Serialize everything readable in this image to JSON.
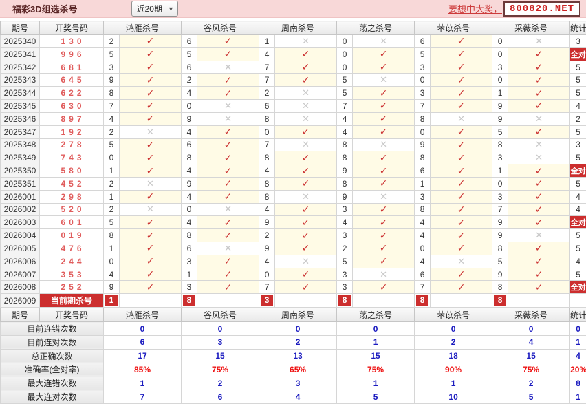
{
  "topbar": {
    "title": "福彩3D组选杀号",
    "range_value": "近20期",
    "promo_link": "要想中大奖，",
    "promo_site": "800820.NET"
  },
  "icons": {
    "check": "✓",
    "cross": "✕",
    "dropdown_arrow": "▼"
  },
  "colors": {
    "accent_red": "#cc2e2e",
    "value_blue": "#1a1abf",
    "percent_red": "#ee1111",
    "hit_bg": "#fffbe6"
  },
  "table": {
    "headers": {
      "period": "期号",
      "draw": "开奖号码",
      "experts": [
        "鸿雁杀号",
        "谷风杀号",
        "周南杀号",
        "荡之杀号",
        "芣苡杀号",
        "采薇杀号"
      ],
      "stat": "统计"
    },
    "all_correct_label": "全对",
    "rows": [
      {
        "period": "2025340",
        "draw": "130",
        "kills": [
          {
            "n": "2",
            "hit": true
          },
          {
            "n": "6",
            "hit": true
          },
          {
            "n": "1",
            "hit": false
          },
          {
            "n": "0",
            "hit": false
          },
          {
            "n": "6",
            "hit": true
          },
          {
            "n": "0",
            "hit": false
          }
        ],
        "stat": "3"
      },
      {
        "period": "2025341",
        "draw": "996",
        "kills": [
          {
            "n": "5",
            "hit": true
          },
          {
            "n": "5",
            "hit": true
          },
          {
            "n": "4",
            "hit": true
          },
          {
            "n": "0",
            "hit": true
          },
          {
            "n": "5",
            "hit": true
          },
          {
            "n": "0",
            "hit": true
          }
        ],
        "stat": "全对"
      },
      {
        "period": "2025342",
        "draw": "681",
        "kills": [
          {
            "n": "3",
            "hit": true
          },
          {
            "n": "6",
            "hit": false
          },
          {
            "n": "7",
            "hit": true
          },
          {
            "n": "0",
            "hit": true
          },
          {
            "n": "3",
            "hit": true
          },
          {
            "n": "3",
            "hit": true
          }
        ],
        "stat": "5"
      },
      {
        "period": "2025343",
        "draw": "645",
        "kills": [
          {
            "n": "9",
            "hit": true
          },
          {
            "n": "2",
            "hit": true
          },
          {
            "n": "7",
            "hit": true
          },
          {
            "n": "5",
            "hit": false
          },
          {
            "n": "0",
            "hit": true
          },
          {
            "n": "0",
            "hit": true
          }
        ],
        "stat": "5"
      },
      {
        "period": "2025344",
        "draw": "622",
        "kills": [
          {
            "n": "8",
            "hit": true
          },
          {
            "n": "4",
            "hit": true
          },
          {
            "n": "2",
            "hit": false
          },
          {
            "n": "5",
            "hit": true
          },
          {
            "n": "3",
            "hit": true
          },
          {
            "n": "1",
            "hit": true
          }
        ],
        "stat": "5"
      },
      {
        "period": "2025345",
        "draw": "630",
        "kills": [
          {
            "n": "7",
            "hit": true
          },
          {
            "n": "0",
            "hit": false
          },
          {
            "n": "6",
            "hit": false
          },
          {
            "n": "7",
            "hit": true
          },
          {
            "n": "7",
            "hit": true
          },
          {
            "n": "9",
            "hit": true
          }
        ],
        "stat": "4"
      },
      {
        "period": "2025346",
        "draw": "897",
        "kills": [
          {
            "n": "4",
            "hit": true
          },
          {
            "n": "9",
            "hit": false
          },
          {
            "n": "8",
            "hit": false
          },
          {
            "n": "4",
            "hit": true
          },
          {
            "n": "8",
            "hit": false
          },
          {
            "n": "9",
            "hit": false
          }
        ],
        "stat": "2"
      },
      {
        "period": "2025347",
        "draw": "192",
        "kills": [
          {
            "n": "2",
            "hit": false
          },
          {
            "n": "4",
            "hit": true
          },
          {
            "n": "0",
            "hit": true
          },
          {
            "n": "4",
            "hit": true
          },
          {
            "n": "0",
            "hit": true
          },
          {
            "n": "5",
            "hit": true
          }
        ],
        "stat": "5"
      },
      {
        "period": "2025348",
        "draw": "278",
        "kills": [
          {
            "n": "5",
            "hit": true
          },
          {
            "n": "6",
            "hit": true
          },
          {
            "n": "7",
            "hit": false
          },
          {
            "n": "8",
            "hit": false
          },
          {
            "n": "9",
            "hit": true
          },
          {
            "n": "8",
            "hit": false
          }
        ],
        "stat": "3"
      },
      {
        "period": "2025349",
        "draw": "743",
        "kills": [
          {
            "n": "0",
            "hit": true
          },
          {
            "n": "8",
            "hit": true
          },
          {
            "n": "8",
            "hit": true
          },
          {
            "n": "8",
            "hit": true
          },
          {
            "n": "8",
            "hit": true
          },
          {
            "n": "3",
            "hit": false
          }
        ],
        "stat": "5"
      },
      {
        "period": "2025350",
        "draw": "580",
        "kills": [
          {
            "n": "1",
            "hit": true
          },
          {
            "n": "4",
            "hit": true
          },
          {
            "n": "4",
            "hit": true
          },
          {
            "n": "9",
            "hit": true
          },
          {
            "n": "6",
            "hit": true
          },
          {
            "n": "1",
            "hit": true
          }
        ],
        "stat": "全对"
      },
      {
        "period": "2025351",
        "draw": "452",
        "kills": [
          {
            "n": "2",
            "hit": false
          },
          {
            "n": "9",
            "hit": true
          },
          {
            "n": "8",
            "hit": true
          },
          {
            "n": "8",
            "hit": true
          },
          {
            "n": "1",
            "hit": true
          },
          {
            "n": "0",
            "hit": true
          }
        ],
        "stat": "5"
      },
      {
        "period": "2026001",
        "draw": "298",
        "kills": [
          {
            "n": "1",
            "hit": true
          },
          {
            "n": "4",
            "hit": true
          },
          {
            "n": "8",
            "hit": false
          },
          {
            "n": "9",
            "hit": false
          },
          {
            "n": "3",
            "hit": true
          },
          {
            "n": "3",
            "hit": true
          }
        ],
        "stat": "4"
      },
      {
        "period": "2026002",
        "draw": "520",
        "kills": [
          {
            "n": "2",
            "hit": false
          },
          {
            "n": "0",
            "hit": false
          },
          {
            "n": "4",
            "hit": true
          },
          {
            "n": "3",
            "hit": true
          },
          {
            "n": "8",
            "hit": true
          },
          {
            "n": "7",
            "hit": true
          }
        ],
        "stat": "4"
      },
      {
        "period": "2026003",
        "draw": "601",
        "kills": [
          {
            "n": "5",
            "hit": true
          },
          {
            "n": "4",
            "hit": true
          },
          {
            "n": "9",
            "hit": true
          },
          {
            "n": "4",
            "hit": true
          },
          {
            "n": "4",
            "hit": true
          },
          {
            "n": "9",
            "hit": true
          }
        ],
        "stat": "全对"
      },
      {
        "period": "2026004",
        "draw": "019",
        "kills": [
          {
            "n": "8",
            "hit": true
          },
          {
            "n": "8",
            "hit": true
          },
          {
            "n": "2",
            "hit": true
          },
          {
            "n": "3",
            "hit": true
          },
          {
            "n": "4",
            "hit": true
          },
          {
            "n": "9",
            "hit": false
          }
        ],
        "stat": "5"
      },
      {
        "period": "2026005",
        "draw": "476",
        "kills": [
          {
            "n": "1",
            "hit": true
          },
          {
            "n": "6",
            "hit": false
          },
          {
            "n": "9",
            "hit": true
          },
          {
            "n": "2",
            "hit": true
          },
          {
            "n": "0",
            "hit": true
          },
          {
            "n": "8",
            "hit": true
          }
        ],
        "stat": "5"
      },
      {
        "period": "2026006",
        "draw": "244",
        "kills": [
          {
            "n": "0",
            "hit": true
          },
          {
            "n": "3",
            "hit": true
          },
          {
            "n": "4",
            "hit": false
          },
          {
            "n": "5",
            "hit": true
          },
          {
            "n": "4",
            "hit": false
          },
          {
            "n": "5",
            "hit": true
          }
        ],
        "stat": "4"
      },
      {
        "period": "2026007",
        "draw": "353",
        "kills": [
          {
            "n": "4",
            "hit": true
          },
          {
            "n": "1",
            "hit": true
          },
          {
            "n": "0",
            "hit": true
          },
          {
            "n": "3",
            "hit": false
          },
          {
            "n": "6",
            "hit": true
          },
          {
            "n": "9",
            "hit": true
          }
        ],
        "stat": "5"
      },
      {
        "period": "2026008",
        "draw": "252",
        "kills": [
          {
            "n": "9",
            "hit": true
          },
          {
            "n": "3",
            "hit": true
          },
          {
            "n": "7",
            "hit": true
          },
          {
            "n": "3",
            "hit": true
          },
          {
            "n": "7",
            "hit": true
          },
          {
            "n": "8",
            "hit": true
          }
        ],
        "stat": "全对"
      }
    ],
    "current": {
      "period": "2026009",
      "label": "当前期杀号",
      "kills": [
        "1",
        "8",
        "3",
        "8",
        "8",
        "8"
      ],
      "stat": ""
    }
  },
  "stats": {
    "rows": [
      {
        "label": "目前连错次数",
        "values": [
          "0",
          "0",
          "0",
          "0",
          "0",
          "0"
        ],
        "total": "0",
        "color": "blue"
      },
      {
        "label": "目前连对次数",
        "values": [
          "6",
          "3",
          "2",
          "1",
          "2",
          "4"
        ],
        "total": "1",
        "color": "blue"
      },
      {
        "label": "总正确次数",
        "values": [
          "17",
          "15",
          "13",
          "15",
          "18",
          "15"
        ],
        "total": "4",
        "color": "blue"
      },
      {
        "label": "准确率(全对率)",
        "values": [
          "85%",
          "75%",
          "65%",
          "75%",
          "90%",
          "75%"
        ],
        "total": "20%",
        "color": "red"
      },
      {
        "label": "最大连错次数",
        "values": [
          "1",
          "2",
          "3",
          "1",
          "1",
          "2"
        ],
        "total": "8",
        "color": "blue"
      },
      {
        "label": "最大连对次数",
        "values": [
          "7",
          "6",
          "4",
          "5",
          "10",
          "5"
        ],
        "total": "1",
        "color": "blue"
      }
    ]
  }
}
